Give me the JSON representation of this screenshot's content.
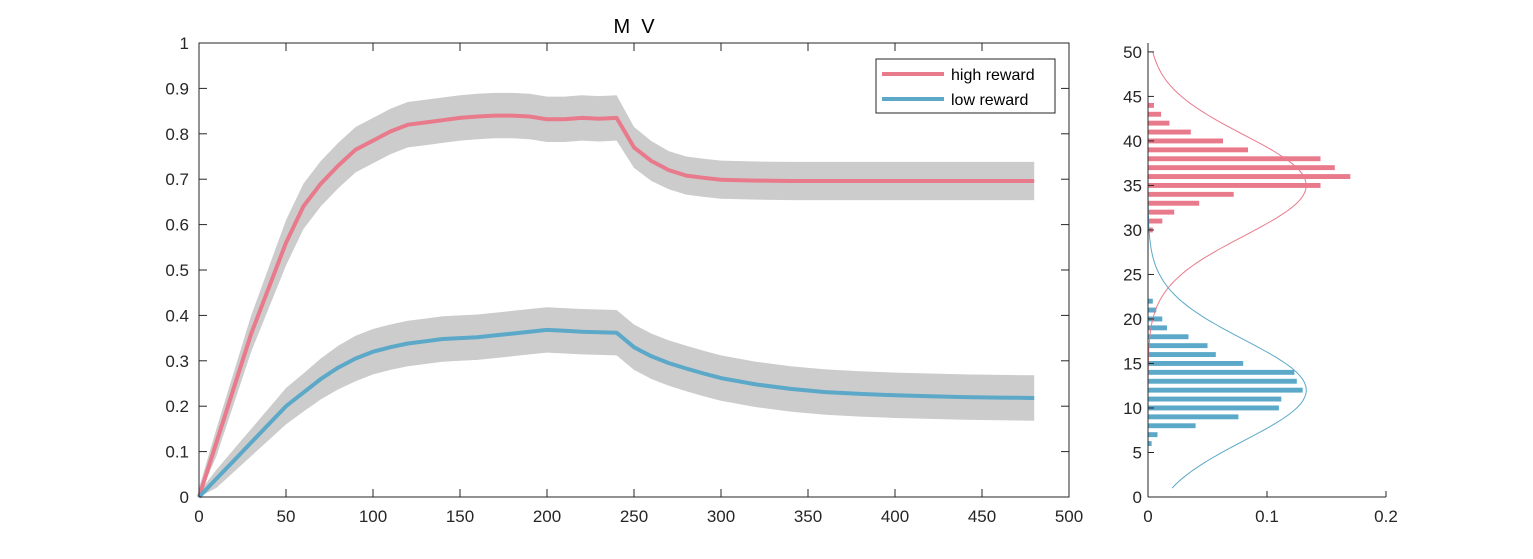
{
  "chart_data": [
    {
      "type": "line",
      "title": "M  V",
      "xlabel": "",
      "ylabel": "",
      "xlim": [
        0,
        500
      ],
      "ylim": [
        0,
        1
      ],
      "xticks": [
        0,
        50,
        100,
        150,
        200,
        250,
        300,
        350,
        400,
        450,
        500
      ],
      "yticks": [
        0,
        0.1,
        0.2,
        0.3,
        0.4,
        0.5,
        0.6,
        0.7,
        0.8,
        0.9,
        1
      ],
      "grid": false,
      "legend_position": "top-right",
      "series": [
        {
          "name": "high reward",
          "color": "#e87a8c",
          "x": [
            0,
            10,
            20,
            30,
            40,
            50,
            60,
            70,
            80,
            90,
            100,
            110,
            120,
            130,
            140,
            150,
            160,
            170,
            180,
            190,
            200,
            210,
            220,
            230,
            240,
            250,
            260,
            270,
            280,
            290,
            300,
            320,
            340,
            360,
            380,
            400,
            420,
            440,
            460,
            480
          ],
          "y": [
            0,
            0.12,
            0.24,
            0.36,
            0.46,
            0.56,
            0.64,
            0.69,
            0.73,
            0.765,
            0.785,
            0.805,
            0.82,
            0.825,
            0.83,
            0.835,
            0.838,
            0.84,
            0.84,
            0.838,
            0.832,
            0.832,
            0.835,
            0.833,
            0.835,
            0.77,
            0.74,
            0.72,
            0.708,
            0.703,
            0.699,
            0.697,
            0.696,
            0.696,
            0.696,
            0.696,
            0.696,
            0.696,
            0.696,
            0.696
          ],
          "band": [
            0.02,
            0.03,
            0.035,
            0.04,
            0.045,
            0.05,
            0.05,
            0.05,
            0.05,
            0.05,
            0.05,
            0.05,
            0.05,
            0.05,
            0.05,
            0.05,
            0.05,
            0.05,
            0.05,
            0.05,
            0.05,
            0.05,
            0.05,
            0.05,
            0.05,
            0.045,
            0.044,
            0.042,
            0.042,
            0.042,
            0.042,
            0.042,
            0.042,
            0.042,
            0.042,
            0.042,
            0.042,
            0.042,
            0.042,
            0.042
          ]
        },
        {
          "name": "low reward",
          "color": "#5ba8c8",
          "x": [
            0,
            10,
            20,
            30,
            40,
            50,
            60,
            70,
            80,
            90,
            100,
            110,
            120,
            130,
            140,
            150,
            160,
            170,
            180,
            190,
            200,
            210,
            220,
            230,
            240,
            250,
            260,
            270,
            280,
            290,
            300,
            320,
            340,
            360,
            380,
            400,
            420,
            440,
            460,
            480
          ],
          "y": [
            0,
            0.04,
            0.08,
            0.12,
            0.16,
            0.2,
            0.23,
            0.26,
            0.285,
            0.305,
            0.32,
            0.33,
            0.338,
            0.343,
            0.348,
            0.35,
            0.352,
            0.356,
            0.36,
            0.364,
            0.368,
            0.366,
            0.364,
            0.363,
            0.362,
            0.33,
            0.31,
            0.295,
            0.283,
            0.272,
            0.262,
            0.248,
            0.238,
            0.231,
            0.227,
            0.224,
            0.222,
            0.22,
            0.219,
            0.218
          ],
          "band": [
            0.01,
            0.02,
            0.025,
            0.03,
            0.035,
            0.04,
            0.042,
            0.045,
            0.048,
            0.05,
            0.05,
            0.05,
            0.05,
            0.05,
            0.05,
            0.05,
            0.05,
            0.05,
            0.05,
            0.05,
            0.05,
            0.05,
            0.05,
            0.05,
            0.05,
            0.05,
            0.05,
            0.05,
            0.05,
            0.05,
            0.05,
            0.05,
            0.05,
            0.05,
            0.05,
            0.05,
            0.05,
            0.05,
            0.05,
            0.05
          ]
        }
      ]
    },
    {
      "type": "bar",
      "orientation": "horizontal",
      "title": "",
      "xlim": [
        0,
        0.2
      ],
      "ylim": [
        0,
        51
      ],
      "xticks": [
        0,
        0.1,
        0.2
      ],
      "xtick_labels": [
        "0",
        "0.1",
        "0.2"
      ],
      "yticks": [
        0,
        5,
        10,
        15,
        20,
        25,
        30,
        35,
        40,
        45,
        50
      ],
      "series": [
        {
          "name": "",
          "color": "#e87a8c",
          "bins": [
            30,
            31,
            32,
            33,
            34,
            35,
            36,
            37,
            38,
            39,
            40,
            41,
            42,
            43,
            44
          ],
          "values": [
            0.004,
            0.012,
            0.022,
            0.043,
            0.072,
            0.145,
            0.17,
            0.157,
            0.145,
            0.084,
            0.063,
            0.036,
            0.018,
            0.011,
            0.005
          ],
          "fit_mean": 35,
          "fit_sd": 3,
          "fit_range": [
            0,
            50
          ]
        },
        {
          "name": "",
          "color": "#5ba8c8",
          "bins": [
            6,
            7,
            8,
            9,
            10,
            11,
            12,
            13,
            14,
            15,
            16,
            17,
            18,
            19,
            20,
            21,
            22
          ],
          "values": [
            0.003,
            0.008,
            0.04,
            0.076,
            0.11,
            0.112,
            0.13,
            0.125,
            0.123,
            0.08,
            0.057,
            0.05,
            0.034,
            0.016,
            0.012,
            0.007,
            0.004
          ],
          "fit_mean": 12,
          "fit_sd": 3,
          "fit_range": [
            1,
            50
          ]
        }
      ]
    }
  ]
}
